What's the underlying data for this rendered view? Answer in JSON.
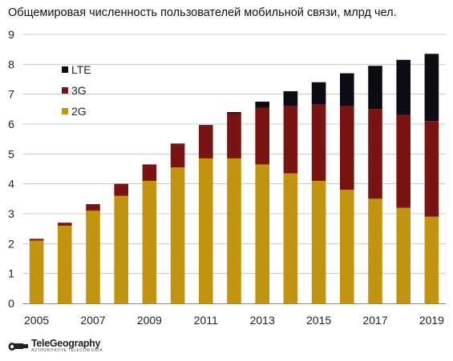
{
  "chart_data": {
    "type": "bar",
    "stacked": true,
    "title": "Общемировая численность пользователей мобильной связи, млрд чел.",
    "xlabel": "",
    "ylabel": "",
    "categories": [
      "2005",
      "2006",
      "2007",
      "2008",
      "2009",
      "2010",
      "2011",
      "2012",
      "2013",
      "2014",
      "2015",
      "2016",
      "2017",
      "2018",
      "2019"
    ],
    "x_tick_labels": [
      "2005",
      "2007",
      "2009",
      "2011",
      "2013",
      "2015",
      "2017",
      "2019"
    ],
    "y_ticks": [
      "0",
      "1",
      "2",
      "3",
      "4",
      "5",
      "6",
      "7",
      "8",
      "9"
    ],
    "ylim": [
      0,
      9
    ],
    "grid": true,
    "legend_position": "top-left",
    "series": [
      {
        "name": "2G",
        "color": "#c29410",
        "values": [
          2.1,
          2.6,
          3.1,
          3.6,
          4.1,
          4.55,
          4.85,
          4.85,
          4.65,
          4.35,
          4.1,
          3.8,
          3.5,
          3.2,
          2.9
        ]
      },
      {
        "name": "3G",
        "color": "#7a1412",
        "values": [
          0.06,
          0.1,
          0.22,
          0.4,
          0.55,
          0.8,
          1.1,
          1.5,
          1.9,
          2.25,
          2.55,
          2.8,
          3.0,
          3.1,
          3.2
        ]
      },
      {
        "name": "LTE",
        "color": "#0c0c14",
        "values": [
          0,
          0,
          0,
          0,
          0,
          0,
          0.02,
          0.05,
          0.2,
          0.5,
          0.75,
          1.1,
          1.45,
          1.85,
          2.25
        ]
      }
    ]
  },
  "logo": {
    "word": "TeleGeography",
    "tagline": "AUTHORITATIVE TELECOM DATA",
    "icon": "telescope-icon"
  }
}
